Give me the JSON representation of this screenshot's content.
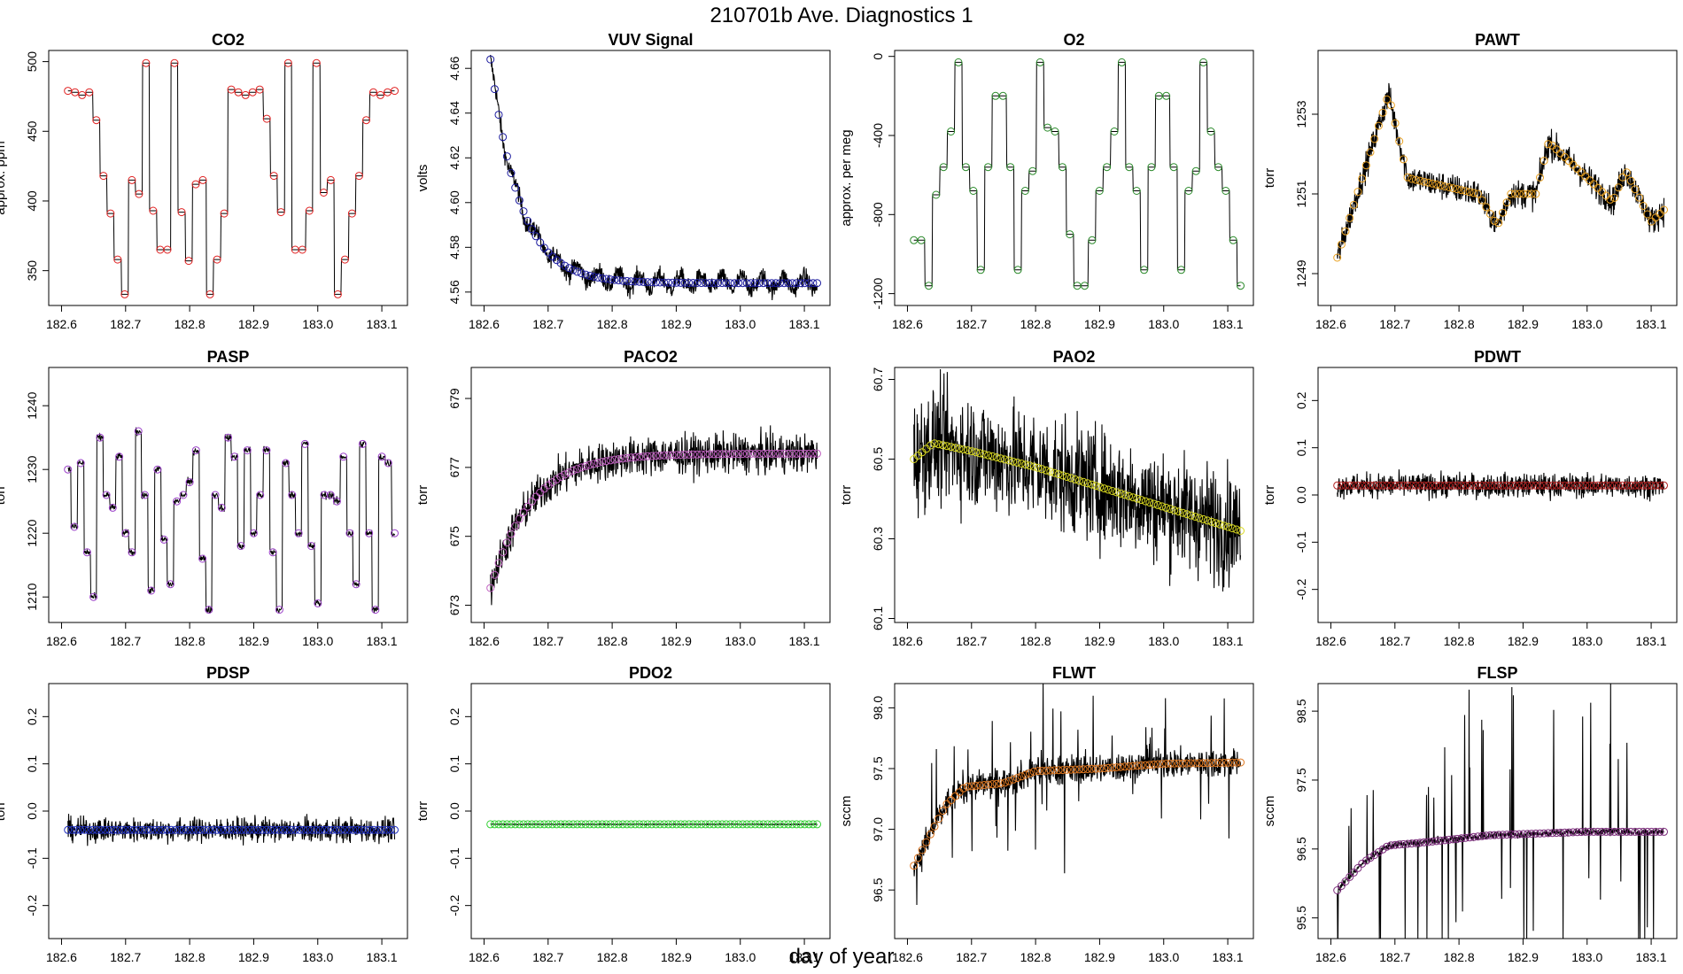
{
  "page": {
    "title": "210701b   Ave. Diagnostics 1",
    "xlabel": "day of year"
  },
  "colors": {
    "trace": "#000000"
  },
  "chart_data": [
    {
      "type": "line",
      "title": "CO2",
      "ylabel": "approx. ppm",
      "marker_color": "#e02020",
      "xlim": [
        182.58,
        183.14
      ],
      "ylim": [
        325,
        508
      ],
      "xticks": [
        182.6,
        182.7,
        182.8,
        182.9,
        183.0,
        183.1
      ],
      "xtick_labels": [
        "182.6",
        "182.7",
        "182.8",
        "182.9",
        "183.0",
        "183.1"
      ],
      "yticks": [
        350,
        400,
        450,
        500
      ],
      "ytick_labels": [
        "350",
        "400",
        "450",
        "500"
      ],
      "style": "stepped",
      "noise": 0,
      "pattern": [
        479,
        478,
        476,
        478,
        458,
        418,
        391,
        358,
        333,
        415,
        405,
        499,
        393,
        365,
        365,
        499,
        392,
        357,
        412,
        415,
        333,
        358,
        391,
        480,
        478,
        476,
        478,
        480,
        459,
        418,
        392,
        499,
        365,
        365,
        393,
        499,
        406,
        415,
        333,
        358,
        391,
        418,
        458,
        478,
        476,
        478,
        479
      ],
      "start": 182.61,
      "end": 183.12
    },
    {
      "type": "line",
      "title": "VUV Signal",
      "ylabel": "volts",
      "marker_color": "#1a1a9e",
      "xlim": [
        182.58,
        183.14
      ],
      "ylim": [
        4.554,
        4.668
      ],
      "xticks": [
        182.6,
        182.7,
        182.8,
        182.9,
        183.0,
        183.1
      ],
      "xtick_labels": [
        "182.6",
        "182.7",
        "182.8",
        "182.9",
        "183.0",
        "183.1"
      ],
      "yticks": [
        4.56,
        4.58,
        4.6,
        4.62,
        4.64,
        4.66
      ],
      "ytick_labels": [
        "4.56",
        "4.58",
        "4.60",
        "4.62",
        "4.64",
        "4.66"
      ],
      "style": "curve",
      "noise": 0.004,
      "ripple": 0.003,
      "curve": {
        "a": 4.564,
        "b": 0.1,
        "k": 22
      },
      "start": 182.61,
      "end": 183.12
    },
    {
      "type": "line",
      "title": "O2",
      "ylabel": "approx. per meg",
      "marker_color": "#2a8a2a",
      "xlim": [
        182.58,
        183.14
      ],
      "ylim": [
        -1260,
        30
      ],
      "xticks": [
        182.6,
        182.7,
        182.8,
        182.9,
        183.0,
        183.1
      ],
      "xtick_labels": [
        "182.6",
        "182.7",
        "182.8",
        "182.9",
        "183.0",
        "183.1"
      ],
      "yticks": [
        -1200,
        -800,
        -400,
        0
      ],
      "ytick_labels": [
        "-1200",
        "-800",
        "-400",
        "0"
      ],
      "style": "stepped",
      "noise": 0,
      "pattern": [
        -930,
        -930,
        -1160,
        -700,
        -560,
        -380,
        -30,
        -560,
        -680,
        -1080,
        -560,
        -200,
        -200,
        -560,
        -1080,
        -680,
        -580,
        -30,
        -360,
        -380,
        -560,
        -900,
        -1160,
        -1160,
        -930,
        -680,
        -560,
        -380,
        -30,
        -560,
        -680,
        -1080,
        -560,
        -200,
        -200,
        -560,
        -1080,
        -680,
        -580,
        -30,
        -380,
        -560,
        -680,
        -930,
        -1160
      ],
      "start": 182.61,
      "end": 183.12
    },
    {
      "type": "line",
      "title": "PAWT",
      "ylabel": "torr",
      "marker_color": "#e8a020",
      "xlim": [
        182.58,
        183.14
      ],
      "ylim": [
        1248.2,
        1254.6
      ],
      "xticks": [
        182.6,
        182.7,
        182.8,
        182.9,
        183.0,
        183.1
      ],
      "xtick_labels": [
        "182.6",
        "182.7",
        "182.8",
        "182.9",
        "183.0",
        "183.1"
      ],
      "yticks": [
        1249,
        1251,
        1253
      ],
      "ytick_labels": [
        "1249",
        "1251",
        "1253"
      ],
      "style": "keyframe",
      "noise": 0.35,
      "keys": [
        [
          182.61,
          1249.4
        ],
        [
          182.69,
          1253.5
        ],
        [
          182.72,
          1251.4
        ],
        [
          182.83,
          1251.0
        ],
        [
          182.86,
          1250.2
        ],
        [
          182.88,
          1251.0
        ],
        [
          182.92,
          1251.0
        ],
        [
          182.94,
          1252.3
        ],
        [
          183.04,
          1250.8
        ],
        [
          183.06,
          1251.6
        ],
        [
          183.1,
          1250.3
        ],
        [
          183.12,
          1250.6
        ]
      ],
      "start": 182.61,
      "end": 183.12
    },
    {
      "type": "line",
      "title": "PASP",
      "ylabel": "torr",
      "marker_color": "#9a3fc8",
      "xlim": [
        182.58,
        183.14
      ],
      "ylim": [
        1206,
        1246
      ],
      "xticks": [
        182.6,
        182.7,
        182.8,
        182.9,
        183.0,
        183.1
      ],
      "xtick_labels": [
        "182.6",
        "182.7",
        "182.8",
        "182.9",
        "183.0",
        "183.1"
      ],
      "yticks": [
        1210,
        1220,
        1230,
        1240
      ],
      "ytick_labels": [
        "1210",
        "1220",
        "1230",
        "1240"
      ],
      "style": "stepped",
      "noise": 0.6,
      "pattern": [
        1230,
        1221,
        1231,
        1217,
        1210,
        1235,
        1226,
        1224,
        1232,
        1220,
        1217,
        1236,
        1226,
        1211,
        1230,
        1219,
        1212,
        1225,
        1226,
        1228,
        1233,
        1216,
        1208,
        1226,
        1224,
        1235,
        1232,
        1218,
        1233,
        1220,
        1226,
        1233,
        1217,
        1208,
        1231,
        1226,
        1220,
        1234,
        1218,
        1209,
        1226,
        1226,
        1225,
        1232,
        1220,
        1212,
        1234,
        1220,
        1208,
        1232,
        1231,
        1220
      ],
      "start": 182.61,
      "end": 183.12
    },
    {
      "type": "line",
      "title": "PACO2",
      "ylabel": "torr",
      "marker_color": "#c060c0",
      "xlim": [
        182.58,
        183.14
      ],
      "ylim": [
        672.5,
        679.9
      ],
      "xticks": [
        182.6,
        182.7,
        182.8,
        182.9,
        183.0,
        183.1
      ],
      "xtick_labels": [
        "182.6",
        "182.7",
        "182.8",
        "182.9",
        "183.0",
        "183.1"
      ],
      "yticks": [
        673,
        675,
        677,
        679
      ],
      "ytick_labels": [
        "673",
        "675",
        "677",
        "679"
      ],
      "style": "curve",
      "noise": 0.55,
      "curve": {
        "a": 677.4,
        "b": -3.9,
        "k": 16
      },
      "start": 182.61,
      "end": 183.12
    },
    {
      "type": "line",
      "title": "PAO2",
      "ylabel": "torr",
      "marker_color": "#d8d820",
      "xlim": [
        182.58,
        183.14
      ],
      "ylim": [
        60.09,
        60.73
      ],
      "xticks": [
        182.6,
        182.7,
        182.8,
        182.9,
        183.0,
        183.1
      ],
      "xtick_labels": [
        "182.6",
        "182.7",
        "182.8",
        "182.9",
        "183.0",
        "183.1"
      ],
      "yticks": [
        60.1,
        60.3,
        60.5,
        60.7
      ],
      "ytick_labels": [
        "60.1",
        "60.3",
        "60.5",
        "60.7"
      ],
      "style": "keyframe",
      "noise": 0.14,
      "keys": [
        [
          182.61,
          60.5
        ],
        [
          182.64,
          60.54
        ],
        [
          182.7,
          60.52
        ],
        [
          182.8,
          60.48
        ],
        [
          182.9,
          60.43
        ],
        [
          183.0,
          60.38
        ],
        [
          183.12,
          60.32
        ]
      ],
      "start": 182.61,
      "end": 183.12
    },
    {
      "type": "line",
      "title": "PDWT",
      "ylabel": "torr",
      "marker_color": "#b02020",
      "xlim": [
        182.58,
        183.14
      ],
      "ylim": [
        -0.27,
        0.27
      ],
      "xticks": [
        182.6,
        182.7,
        182.8,
        182.9,
        183.0,
        183.1
      ],
      "xtick_labels": [
        "182.6",
        "182.7",
        "182.8",
        "182.9",
        "183.0",
        "183.1"
      ],
      "yticks": [
        -0.2,
        -0.1,
        0.0,
        0.1,
        0.2
      ],
      "ytick_labels": [
        "-0.2",
        "-0.1",
        "0.0",
        "0.1",
        "0.2"
      ],
      "style": "flat",
      "noise": 0.025,
      "level": 0.02,
      "start": 182.61,
      "end": 183.12
    },
    {
      "type": "line",
      "title": "PDSP",
      "ylabel": "torr",
      "marker_color": "#2030c0",
      "xlim": [
        182.58,
        183.14
      ],
      "ylim": [
        -0.27,
        0.27
      ],
      "xticks": [
        182.6,
        182.7,
        182.8,
        182.9,
        183.0,
        183.1
      ],
      "xtick_labels": [
        "182.6",
        "182.7",
        "182.8",
        "182.9",
        "183.0",
        "183.1"
      ],
      "yticks": [
        -0.2,
        -0.1,
        0.0,
        0.1,
        0.2
      ],
      "ytick_labels": [
        "-0.2",
        "-0.1",
        "0.0",
        "0.1",
        "0.2"
      ],
      "style": "flat",
      "noise": 0.025,
      "level": -0.04,
      "start": 182.61,
      "end": 183.12
    },
    {
      "type": "line",
      "title": "PDO2",
      "ylabel": "torr",
      "marker_color": "#30d030",
      "xlim": [
        182.58,
        183.14
      ],
      "ylim": [
        -0.27,
        0.27
      ],
      "xticks": [
        182.6,
        182.7,
        182.8,
        182.9,
        183.0,
        183.1
      ],
      "xtick_labels": [
        "182.6",
        "182.7",
        "182.8",
        "182.9",
        "183.0",
        "183.1"
      ],
      "yticks": [
        -0.2,
        -0.1,
        0.0,
        0.1,
        0.2
      ],
      "ytick_labels": [
        "-0.2",
        "-0.1",
        "0.0",
        "0.1",
        "0.2"
      ],
      "style": "flat",
      "noise": 0.001,
      "level": -0.028,
      "start": 182.61,
      "end": 183.12
    },
    {
      "type": "line",
      "title": "FLWT",
      "ylabel": "sccm",
      "marker_color": "#e07820",
      "xlim": [
        182.58,
        183.14
      ],
      "ylim": [
        96.1,
        98.2
      ],
      "xticks": [
        182.6,
        182.7,
        182.8,
        182.9,
        183.0,
        183.1
      ],
      "xtick_labels": [
        "182.6",
        "182.7",
        "182.8",
        "182.9",
        "183.0",
        "183.1"
      ],
      "yticks": [
        96.5,
        97.0,
        97.5,
        98.0
      ],
      "ytick_labels": [
        "96.5",
        "97.0",
        "97.5",
        "98.0"
      ],
      "style": "keyframe",
      "noise": 0.12,
      "spikes": 0.55,
      "keys": [
        [
          182.61,
          96.7
        ],
        [
          182.66,
          97.2
        ],
        [
          182.69,
          97.35
        ],
        [
          182.75,
          97.38
        ],
        [
          182.8,
          97.48
        ],
        [
          182.9,
          97.5
        ],
        [
          183.0,
          97.54
        ],
        [
          183.12,
          97.55
        ]
      ],
      "start": 182.61,
      "end": 183.12
    },
    {
      "type": "line",
      "title": "FLSP",
      "ylabel": "sccm",
      "marker_color": "#7a2a7a",
      "xlim": [
        182.58,
        183.14
      ],
      "ylim": [
        95.2,
        98.9
      ],
      "xticks": [
        182.6,
        182.7,
        182.8,
        182.9,
        183.0,
        183.1
      ],
      "xtick_labels": [
        "182.6",
        "182.7",
        "182.8",
        "182.9",
        "183.0",
        "183.1"
      ],
      "yticks": [
        95.5,
        96.5,
        97.5,
        98.5
      ],
      "ytick_labels": [
        "95.5",
        "96.5",
        "97.5",
        "98.5"
      ],
      "style": "keyframe",
      "noise": 0.05,
      "spikes": 1.6,
      "keys": [
        [
          182.61,
          95.9
        ],
        [
          182.65,
          96.3
        ],
        [
          182.69,
          96.55
        ],
        [
          182.75,
          96.6
        ],
        [
          182.85,
          96.7
        ],
        [
          183.0,
          96.75
        ],
        [
          183.12,
          96.75
        ]
      ],
      "start": 182.61,
      "end": 183.12
    }
  ]
}
